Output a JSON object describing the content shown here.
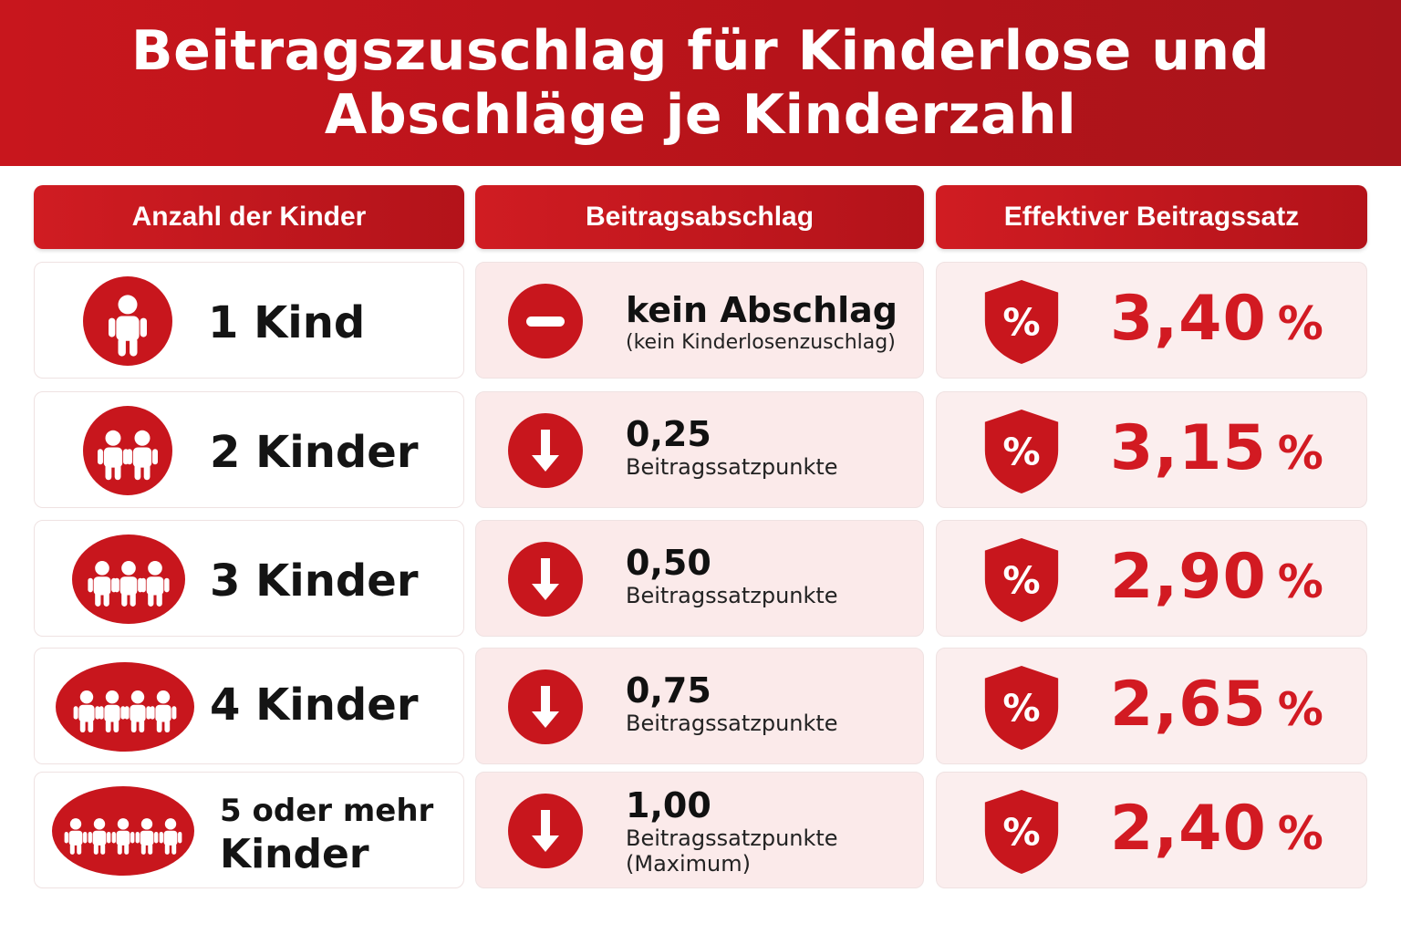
{
  "title": {
    "line1": "Beitragszuschlag für Kinderlose und",
    "line2": "Abschläge je Kinderzahl"
  },
  "headers": {
    "children": "Anzahl der Kinder",
    "discount": "Beitragsabschlag",
    "rate": "Effektiver Beitragssatz"
  },
  "rows": [
    {
      "children_label": "1 Kind",
      "discount_value": "kein Abschlag",
      "discount_note": "(kein Kinderlosenzuschlag)",
      "rate": "3,40",
      "unit": "%"
    },
    {
      "children_label": "2 Kinder",
      "discount_value": "0,25",
      "discount_note": "Beitragssatzpunkte",
      "rate": "3,15",
      "unit": "%"
    },
    {
      "children_label": "3 Kinder",
      "discount_value": "0,50",
      "discount_note": "Beitragssatzpunkte",
      "rate": "2,90",
      "unit": "%"
    },
    {
      "children_label": "4 Kinder",
      "discount_value": "0,75",
      "discount_note": "Beitragssatzpunkte",
      "rate": "2,65",
      "unit": "%"
    },
    {
      "children_label_1": "5 oder mehr",
      "children_label_2": "Kinder",
      "discount_value": "1,00",
      "discount_note": "Beitragssatzpunkte",
      "discount_note_2": "(Maximum)",
      "rate": "2,40",
      "unit": "%"
    }
  ],
  "icons": {
    "children": "children-group-icon",
    "no_discount": "minus-circle-icon",
    "discount": "arrow-down-circle-icon",
    "rate": "percent-shield-icon"
  },
  "colors": {
    "accent": "#c8161d",
    "row_tint": "#fbeaea",
    "rate_text": "#d21a22"
  }
}
